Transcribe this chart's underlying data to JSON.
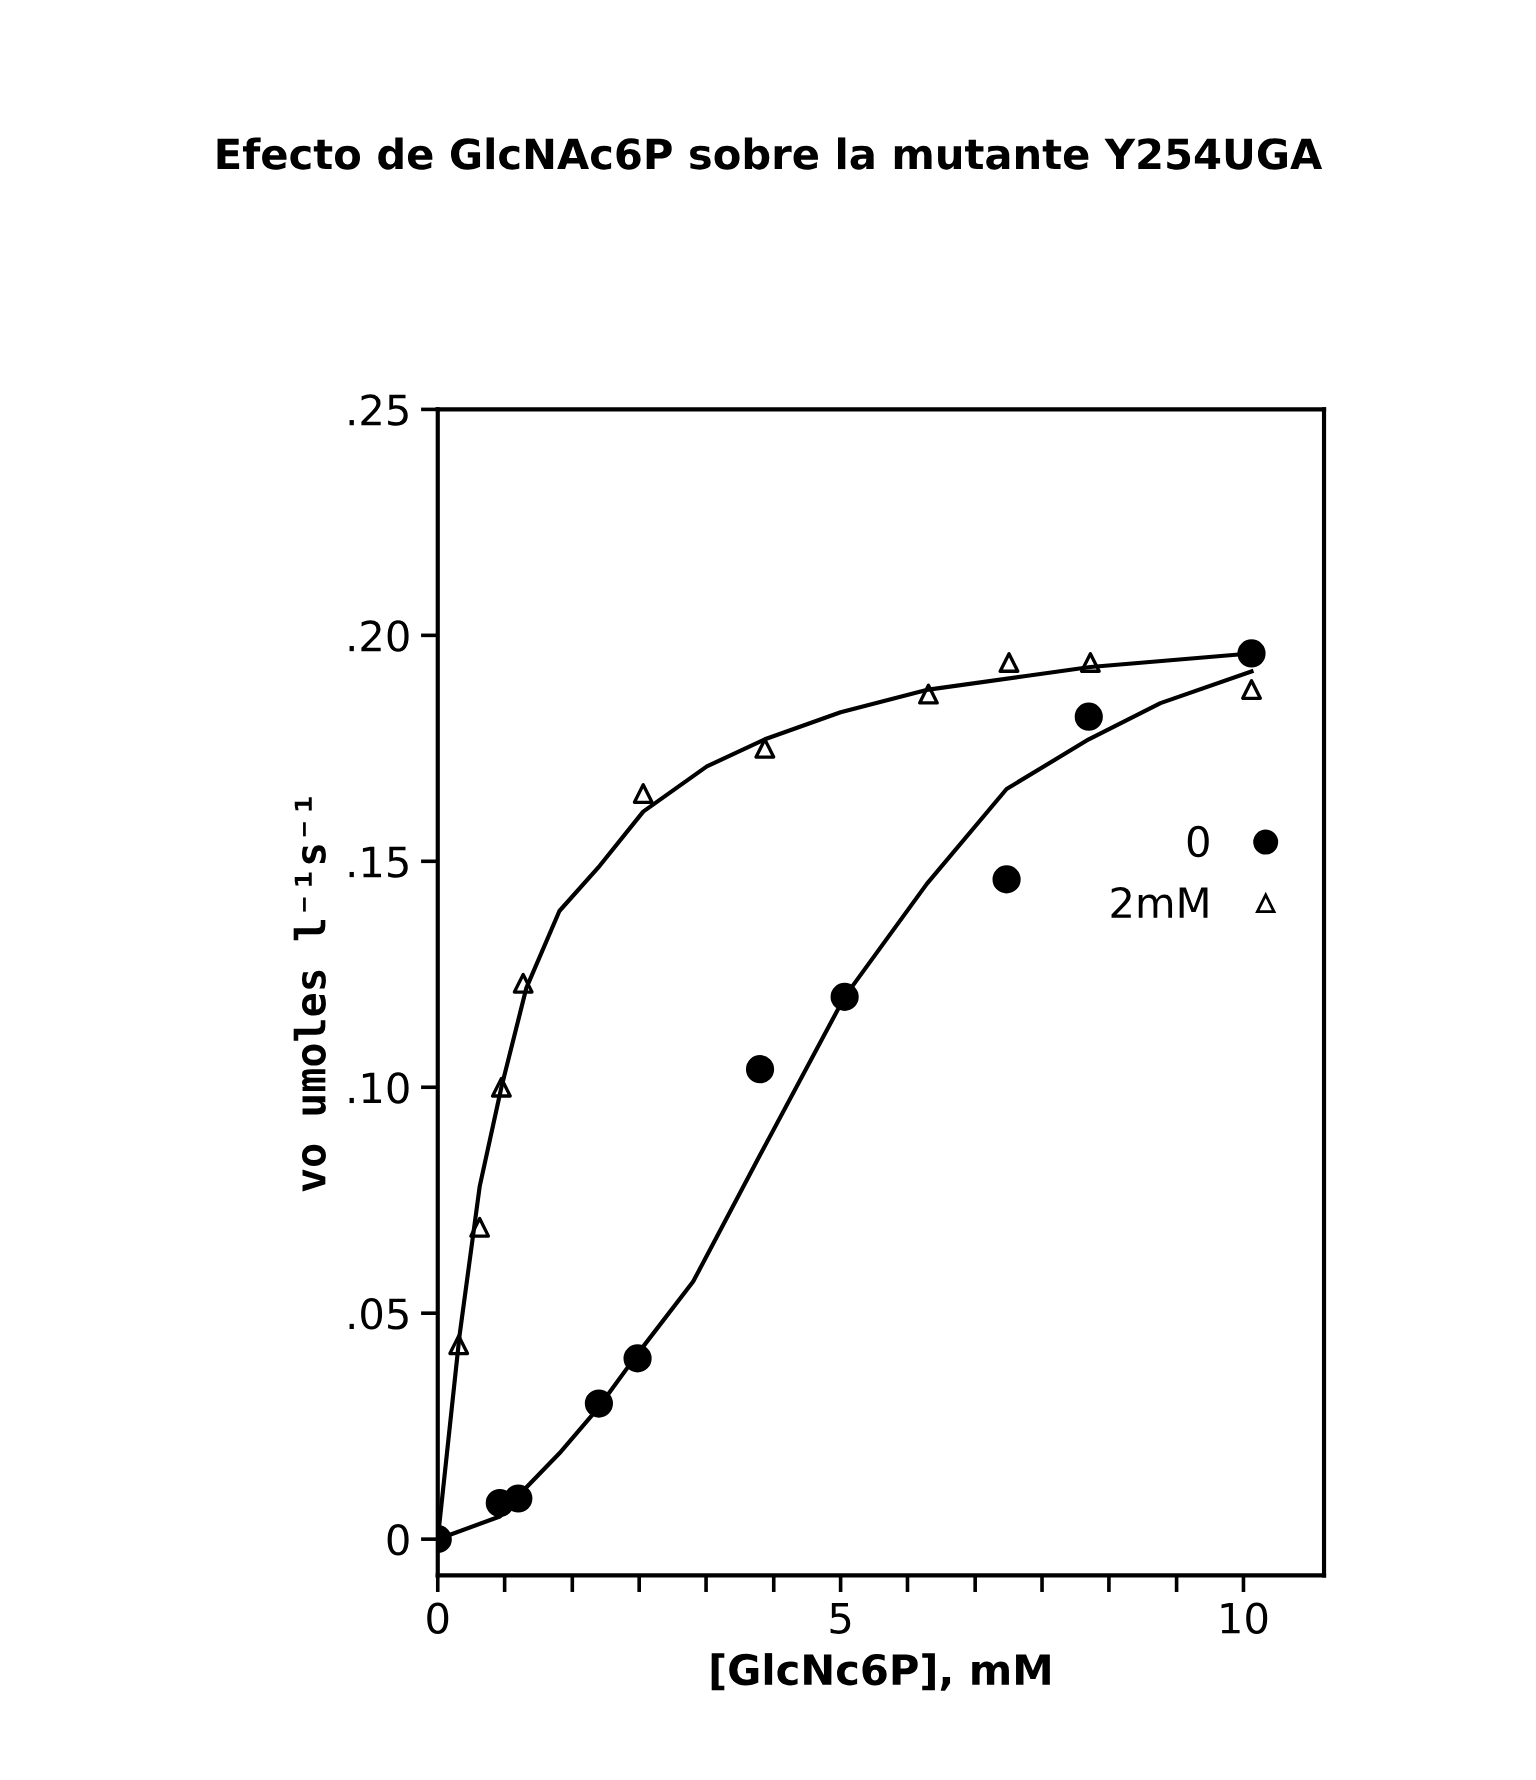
{
  "chart_data": {
    "type": "scatter",
    "title": "Efecto de GlcNAc6P sobre la mutante Y254UGA",
    "xlabel": "[GlcNc6P], mM",
    "ylabel": "vo umoles l⁻¹s⁻¹",
    "xlim": [
      0,
      11
    ],
    "ylim": [
      -0.008,
      0.25
    ],
    "xticks": [
      0,
      {
        "value": 0.83,
        "label": null
      },
      {
        "value": 1.67,
        "label": null
      },
      {
        "value": 2.5,
        "label": null
      },
      {
        "value": 3.33,
        "label": null
      },
      {
        "value": 4.17,
        "label": null
      },
      5,
      {
        "value": 5.83,
        "label": null
      },
      {
        "value": 6.67,
        "label": null
      },
      {
        "value": 7.5,
        "label": null
      },
      {
        "value": 8.33,
        "label": null
      },
      {
        "value": 9.17,
        "label": null
      },
      10
    ],
    "yticks": [
      {
        "value": 0,
        "label": "0"
      },
      {
        "value": 0.05,
        "label": ".05"
      },
      {
        "value": 0.1,
        "label": ".10"
      },
      {
        "value": 0.15,
        "label": ".15"
      },
      {
        "value": 0.2,
        "label": ".20"
      },
      {
        "value": 0.25,
        "label": ".25"
      }
    ],
    "grid": false,
    "legend": "right",
    "series": [
      {
        "name": "0",
        "marker": "circle",
        "color": "#000000",
        "x": [
          0,
          0.77,
          1.0,
          2.0,
          2.48,
          4.0,
          5.05,
          7.06,
          8.08,
          10.1
        ],
        "values": [
          0,
          0.008,
          0.009,
          0.03,
          0.04,
          0.104,
          0.12,
          0.146,
          0.182,
          0.196
        ]
      },
      {
        "name": "2mM",
        "marker": "triangle",
        "color": "#000000",
        "x": [
          0.26,
          0.52,
          0.79,
          1.06,
          2.55,
          4.06,
          6.09,
          7.09,
          8.1,
          10.1
        ],
        "values": [
          0.043,
          0.069,
          0.1,
          0.123,
          0.165,
          0.175,
          0.187,
          0.194,
          0.194,
          0.188
        ]
      },
      {
        "type": "line",
        "marker": "none",
        "color": "#000000",
        "x": [
          0,
          0.27,
          0.52,
          0.79,
          1.1,
          1.51,
          2.01,
          2.55,
          3.34,
          4.06,
          5.0,
          6.09,
          7.3,
          8.1,
          10.1
        ],
        "values": [
          0,
          0.045,
          0.078,
          0.1,
          0.122,
          0.139,
          0.149,
          0.161,
          0.171,
          0.177,
          0.183,
          0.188,
          0.191,
          0.193,
          0.196
        ]
      },
      {
        "type": "line",
        "marker": "none",
        "color": "#000000",
        "x": [
          0,
          0.77,
          1.02,
          1.51,
          1.99,
          2.48,
          3.17,
          4.0,
          5.05,
          6.07,
          7.06,
          8.08,
          8.97,
          10.1
        ],
        "values": [
          0,
          0.005,
          0.01,
          0.019,
          0.029,
          0.041,
          0.057,
          0.085,
          0.12,
          0.145,
          0.166,
          0.177,
          0.185,
          0.192
        ]
      }
    ]
  }
}
